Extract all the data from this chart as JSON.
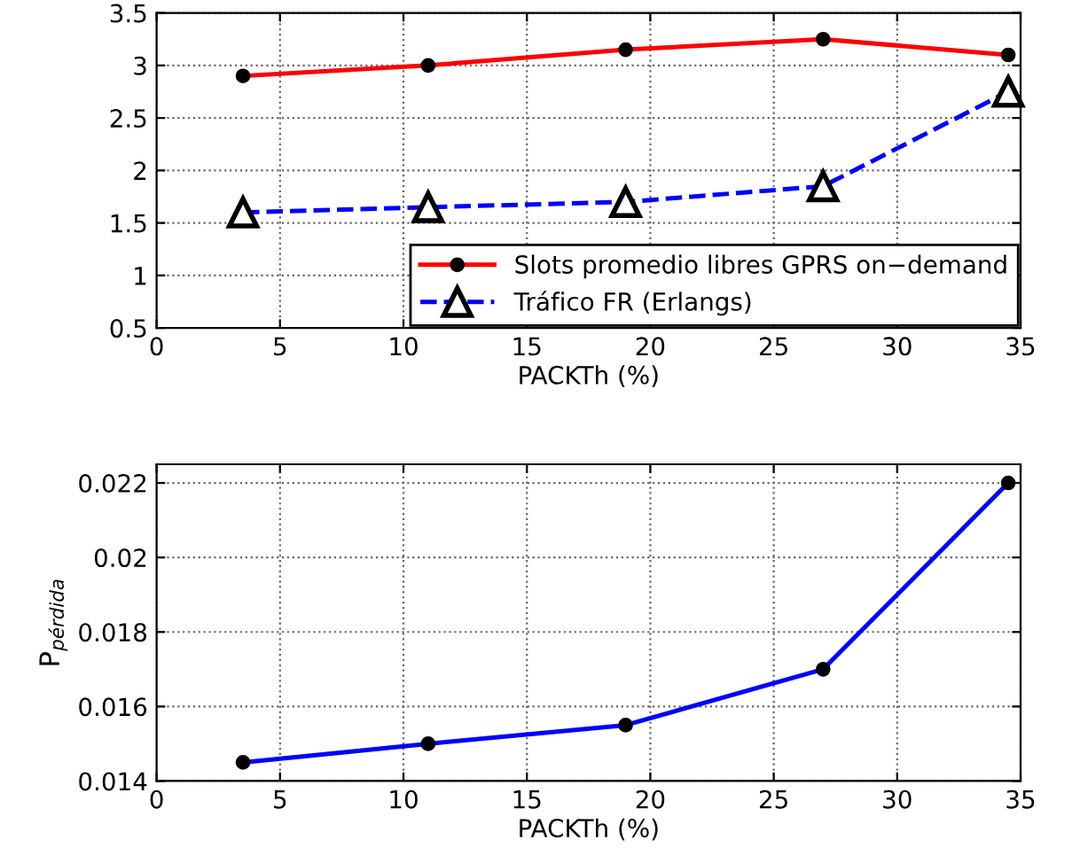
{
  "chart_data": [
    {
      "type": "line",
      "xlabel": "PACKTh (%)",
      "x": [
        3.5,
        11,
        19,
        27,
        34.5
      ],
      "series": [
        {
          "name": "Slots promedio libres GPRS on−demand",
          "color": "#ff0000",
          "values": [
            2.9,
            3.0,
            3.15,
            3.25,
            3.1
          ],
          "marker": "circle",
          "line_style": "solid"
        },
        {
          "name": "Tráfico FR (Erlangs)",
          "color": "#0000ff",
          "values": [
            1.6,
            1.65,
            1.7,
            1.85,
            2.75
          ],
          "marker": "triangle",
          "line_style": "dashed"
        }
      ],
      "xlim": [
        0,
        35
      ],
      "xticks": [
        0,
        5,
        10,
        15,
        20,
        25,
        30,
        35
      ],
      "ylim": [
        0.5,
        3.5
      ],
      "yticks": [
        0.5,
        1,
        1.5,
        2,
        2.5,
        3,
        3.5
      ],
      "grid": true,
      "legend": "bottom right"
    },
    {
      "type": "line",
      "xlabel": "PACKTh (%)",
      "ylabel": "P$_{pérdida}$",
      "x": [
        3.5,
        11,
        19,
        27,
        34.5
      ],
      "series": [
        {
          "color": "#0000ff",
          "values": [
            0.0145,
            0.015,
            0.0155,
            0.017,
            0.022
          ],
          "marker": "circle",
          "line_style": "solid"
        }
      ],
      "xlim": [
        0,
        35
      ],
      "xticks": [
        0,
        5,
        10,
        15,
        20,
        25,
        30,
        35
      ],
      "ylim": [
        0.014,
        0.0225
      ],
      "yticks": [
        0.014,
        0.016,
        0.018,
        0.02,
        0.022
      ],
      "grid": true
    }
  ]
}
